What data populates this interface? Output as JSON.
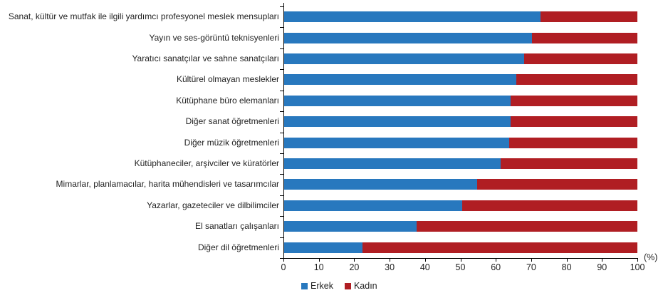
{
  "chart_data": {
    "type": "bar",
    "orientation": "horizontal",
    "stacked": true,
    "unit_label": "(%)",
    "title": "",
    "xlabel": "(%)",
    "ylabel": "",
    "xlim": [
      0,
      100
    ],
    "xticks": [
      0,
      10,
      20,
      30,
      40,
      50,
      60,
      70,
      80,
      90,
      100
    ],
    "grid": false,
    "legend_position": "bottom",
    "categories": [
      "Sanat, kültür ve mutfak ile ilgili yardımcı profesyonel meslek mensupları",
      "Yayın ve ses-görüntü teknisyenleri",
      "Yaratıcı sanatçılar ve sahne sanatçıları",
      "Kültürel olmayan meslekler",
      "Kütüphane büro elemanları",
      "Diğer sanat öğretmenleri",
      "Diğer müzik öğretmenleri",
      "Kütüphaneciler, arşivciler ve küratörler",
      "Mimarlar, planlamacılar, harita mühendisleri ve tasarımcılar",
      "Yazarlar, gazeteciler ve dilbilimciler",
      "El sanatları çalışanları",
      "Diğer dil öğretmenleri"
    ],
    "series": [
      {
        "name": "Erkek",
        "color": "#2878BE",
        "values": [
          72.6,
          70.2,
          68.0,
          65.8,
          64.2,
          64.2,
          63.8,
          61.3,
          54.7,
          50.6,
          37.6,
          22.3
        ]
      },
      {
        "name": "Kadın",
        "color": "#B01E23",
        "values": [
          27.4,
          29.8,
          32.0,
          34.2,
          35.8,
          35.8,
          36.2,
          38.7,
          45.3,
          49.4,
          62.4,
          77.7
        ]
      }
    ]
  }
}
